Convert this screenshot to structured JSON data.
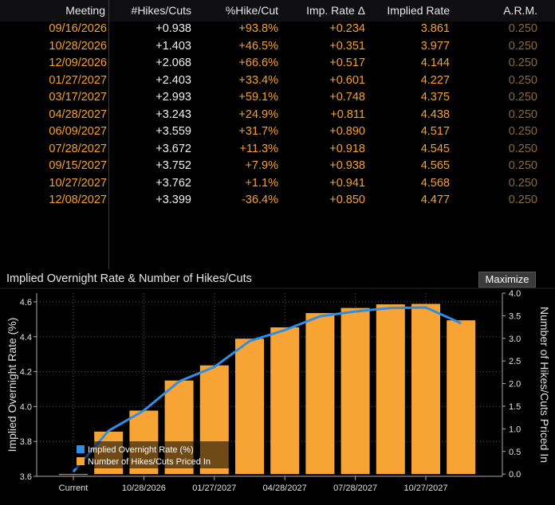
{
  "table": {
    "columns": [
      "Meeting",
      "#Hikes/Cuts",
      "%Hike/Cut",
      "Imp. Rate Δ",
      "Implied Rate",
      "A.R.M."
    ],
    "rows": [
      {
        "meeting": "09/16/2026",
        "hikes": "+0.938",
        "pct": "+93.8%",
        "delta": "+0.234",
        "rate": "3.861",
        "arm": "0.250"
      },
      {
        "meeting": "10/28/2026",
        "hikes": "+1.403",
        "pct": "+46.5%",
        "delta": "+0.351",
        "rate": "3.977",
        "arm": "0.250"
      },
      {
        "meeting": "12/09/2026",
        "hikes": "+2.068",
        "pct": "+66.6%",
        "delta": "+0.517",
        "rate": "4.144",
        "arm": "0.250"
      },
      {
        "meeting": "01/27/2027",
        "hikes": "+2.403",
        "pct": "+33.4%",
        "delta": "+0.601",
        "rate": "4.227",
        "arm": "0.250"
      },
      {
        "meeting": "03/17/2027",
        "hikes": "+2.993",
        "pct": "+59.1%",
        "delta": "+0.748",
        "rate": "4.375",
        "arm": "0.250"
      },
      {
        "meeting": "04/28/2027",
        "hikes": "+3.243",
        "pct": "+24.9%",
        "delta": "+0.811",
        "rate": "4.438",
        "arm": "0.250"
      },
      {
        "meeting": "06/09/2027",
        "hikes": "+3.559",
        "pct": "+31.7%",
        "delta": "+0.890",
        "rate": "4.517",
        "arm": "0.250"
      },
      {
        "meeting": "07/28/2027",
        "hikes": "+3.672",
        "pct": "+11.3%",
        "delta": "+0.918",
        "rate": "4.545",
        "arm": "0.250"
      },
      {
        "meeting": "09/15/2027",
        "hikes": "+3.752",
        "pct": "+7.9%",
        "delta": "+0.938",
        "rate": "4.565",
        "arm": "0.250"
      },
      {
        "meeting": "10/27/2027",
        "hikes": "+3.762",
        "pct": "+1.1%",
        "delta": "+0.941",
        "rate": "4.568",
        "arm": "0.250"
      },
      {
        "meeting": "12/08/2027",
        "hikes": "+3.399",
        "pct": "-36.4%",
        "delta": "+0.850",
        "rate": "4.477",
        "arm": "0.250"
      }
    ]
  },
  "chart_panel": {
    "title": "Implied Overnight Rate & Number of Hikes/Cuts",
    "maximize_label": "Maximize"
  },
  "colors": {
    "bar": "#f7a434",
    "line": "#2f8de4",
    "date_text": "#f7a02d",
    "background": "#000000"
  },
  "chart_data": {
    "type": "bar",
    "title": "Implied Overnight Rate & Number of Hikes/Cuts",
    "categories": [
      "Current",
      "09/16/2026",
      "10/28/2026",
      "12/09/2026",
      "01/27/2027",
      "03/17/2027",
      "04/28/2027",
      "06/09/2027",
      "07/28/2027",
      "09/15/2027",
      "10/27/2027",
      "12/08/2027"
    ],
    "x_tick_labels": [
      "Current",
      "10/28/2026",
      "01/27/2027",
      "04/28/2027",
      "07/28/2027",
      "10/27/2027"
    ],
    "ylabel": "Implied Overnight Rate (%)",
    "y2label": "Number of Hikes/Cuts Priced In",
    "ylim": [
      3.6,
      4.65
    ],
    "y2lim": [
      -0.05,
      4.0
    ],
    "y_ticks": [
      "3.6",
      "3.8",
      "4.0",
      "4.2",
      "4.4",
      "4.6"
    ],
    "y2_ticks": [
      "0.0",
      "0.5",
      "1.0",
      "1.5",
      "2.0",
      "2.5",
      "3.0",
      "3.5",
      "4.0"
    ],
    "grid": true,
    "legend_position": "bottom-left",
    "series": [
      {
        "name": "Implied Overnight Rate (%)",
        "type": "line",
        "axis": "left",
        "values": [
          3.627,
          3.861,
          3.977,
          4.144,
          4.227,
          4.375,
          4.438,
          4.517,
          4.545,
          4.565,
          4.568,
          4.477
        ]
      },
      {
        "name": "Number of Hikes/Cuts Priced In",
        "type": "bar",
        "axis": "right",
        "values": [
          0.0,
          0.938,
          1.403,
          2.068,
          2.403,
          2.993,
          3.243,
          3.559,
          3.672,
          3.752,
          3.762,
          3.399
        ]
      }
    ]
  }
}
